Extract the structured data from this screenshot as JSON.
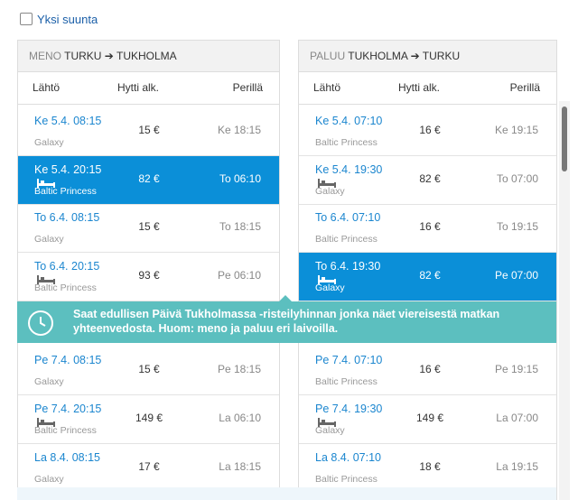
{
  "filter": {
    "one_way": "Yksi suunta"
  },
  "panels": [
    {
      "direction": "MENO",
      "from": "TURKU",
      "to": "TUKHOLMA",
      "columns": [
        "Lähtö",
        "Hytti alk.",
        "Perillä"
      ],
      "rows": [
        {
          "departure": "Ke 5.4. 08:15",
          "ship": "Galaxy",
          "price": "15 €",
          "arrival": "Ke 18:15"
        },
        {
          "departure": "Ke 5.4. 20:15",
          "ship": "Baltic Princess",
          "price": "82 €",
          "arrival": "To 06:10",
          "cabin": true,
          "selected": true
        },
        {
          "departure": "To 6.4. 08:15",
          "ship": "Galaxy",
          "price": "15 €",
          "arrival": "To 18:15"
        },
        {
          "departure": "To 6.4. 20:15",
          "ship": "Baltic Princess",
          "price": "93 €",
          "arrival": "Pe 06:10",
          "cabin": true
        },
        {
          "departure": "Pe 7.4. 08:15",
          "ship": "Galaxy",
          "price": "15 €",
          "arrival": "Pe 18:15"
        },
        {
          "departure": "Pe 7.4. 20:15",
          "ship": "Baltic Princess",
          "price": "149 €",
          "arrival": "La 06:10",
          "cabin": true
        },
        {
          "departure": "La 8.4. 08:15",
          "ship": "Galaxy",
          "price": "17 €",
          "arrival": "La 18:15"
        }
      ]
    },
    {
      "direction": "PALUU",
      "from": "TUKHOLMA",
      "to": "TURKU",
      "columns": [
        "Lähtö",
        "Hytti alk.",
        "Perillä"
      ],
      "rows": [
        {
          "departure": "Ke 5.4. 07:10",
          "ship": "Baltic Princess",
          "price": "16 €",
          "arrival": "Ke 19:15"
        },
        {
          "departure": "Ke 5.4. 19:30",
          "ship": "Galaxy",
          "price": "82 €",
          "arrival": "To 07:00",
          "cabin": true
        },
        {
          "departure": "To 6.4. 07:10",
          "ship": "Baltic Princess",
          "price": "16 €",
          "arrival": "To 19:15"
        },
        {
          "departure": "To 6.4. 19:30",
          "ship": "Galaxy",
          "price": "82 €",
          "arrival": "Pe 07:00",
          "cabin": true,
          "selected": true
        },
        {
          "departure": "Pe 7.4. 07:10",
          "ship": "Baltic Princess",
          "price": "16 €",
          "arrival": "Pe 19:15"
        },
        {
          "departure": "Pe 7.4. 19:30",
          "ship": "Galaxy",
          "price": "149 €",
          "arrival": "La 07:00",
          "cabin": true
        },
        {
          "departure": "La 8.4. 07:10",
          "ship": "Baltic Princess",
          "price": "18 €",
          "arrival": "La 19:15"
        }
      ]
    }
  ],
  "notice": {
    "text": "Saat edullisen Päivä Tukholmassa -risteilyhinnan jonka näet viereisestä matkan yhteenvedosta. Huom: meno ja paluu eri laivoilla."
  }
}
